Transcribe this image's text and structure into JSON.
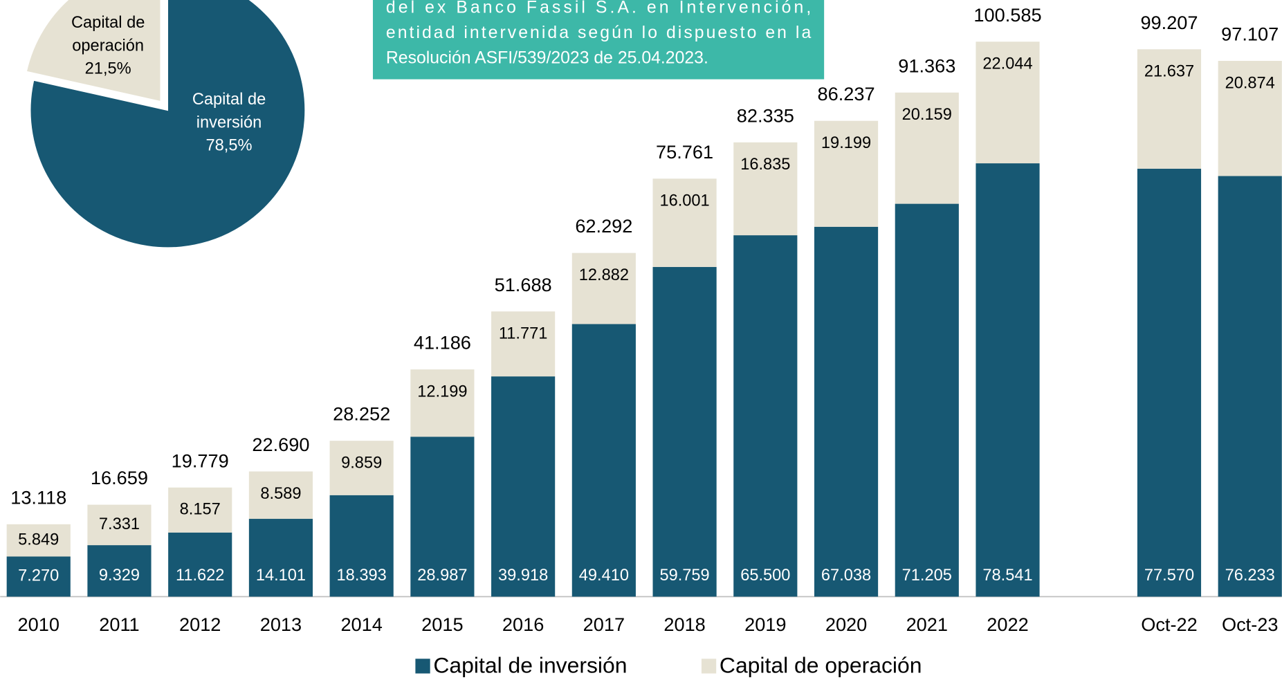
{
  "chart_data": [
    {
      "type": "bar",
      "categories": [
        "2010",
        "2011",
        "2012",
        "2013",
        "2014",
        "2015",
        "2016",
        "2017",
        "2018",
        "2019",
        "2020",
        "2021",
        "2022",
        null,
        "Oct-22",
        "Oct-23"
      ],
      "series": [
        {
          "name": "Capital de inversión",
          "color": "#175873",
          "values": [
            7270,
            9329,
            11622,
            14101,
            18393,
            28987,
            39918,
            49410,
            59759,
            65500,
            67038,
            71205,
            78541,
            null,
            77570,
            76233
          ],
          "value_labels": [
            "7.270",
            "9.329",
            "11.622",
            "14.101",
            "18.393",
            "28.987",
            "39.918",
            "49.410",
            "59.759",
            "65.500",
            "67.038",
            "71.205",
            "78.541",
            null,
            "77.570",
            "76.233"
          ]
        },
        {
          "name": "Capital de operación",
          "color": "#e6e2d3",
          "values": [
            5849,
            7331,
            8157,
            8589,
            9859,
            12199,
            11771,
            12882,
            16001,
            16835,
            19199,
            20159,
            22044,
            null,
            21637,
            20874
          ],
          "value_labels": [
            "5.849",
            "7.331",
            "8.157",
            "8.589",
            "9.859",
            "12.199",
            "11.771",
            "12.882",
            "16.001",
            "16.835",
            "19.199",
            "20.159",
            "22.044",
            null,
            "21.637",
            "20.874"
          ]
        }
      ],
      "totals": [
        13118,
        16659,
        19779,
        22690,
        28252,
        41186,
        51688,
        62292,
        75761,
        82335,
        86237,
        91363,
        100585,
        null,
        99207,
        97107
      ],
      "total_labels": [
        "13.118",
        "16.659",
        "19.779",
        "22.690",
        "28.252",
        "41.186",
        "51.688",
        "62.292",
        "75.761",
        "82.335",
        "86.237",
        "91.363",
        "100.585",
        null,
        "99.207",
        "97.107"
      ],
      "annotation": [
        "del ex Banco Fassil S.A. en Intervención,",
        "entidad intervenida según lo dispuesto en la",
        "Resolución ASFI/539/2023 de 25.04.2023."
      ]
    },
    {
      "type": "pie",
      "categories": [
        "Capital de operación",
        "Capital de inversión"
      ],
      "values": [
        21.5,
        78.5
      ],
      "value_labels": [
        "21,5%",
        "78,5%"
      ],
      "colors": [
        "#e6e2d3",
        "#175873"
      ]
    }
  ]
}
